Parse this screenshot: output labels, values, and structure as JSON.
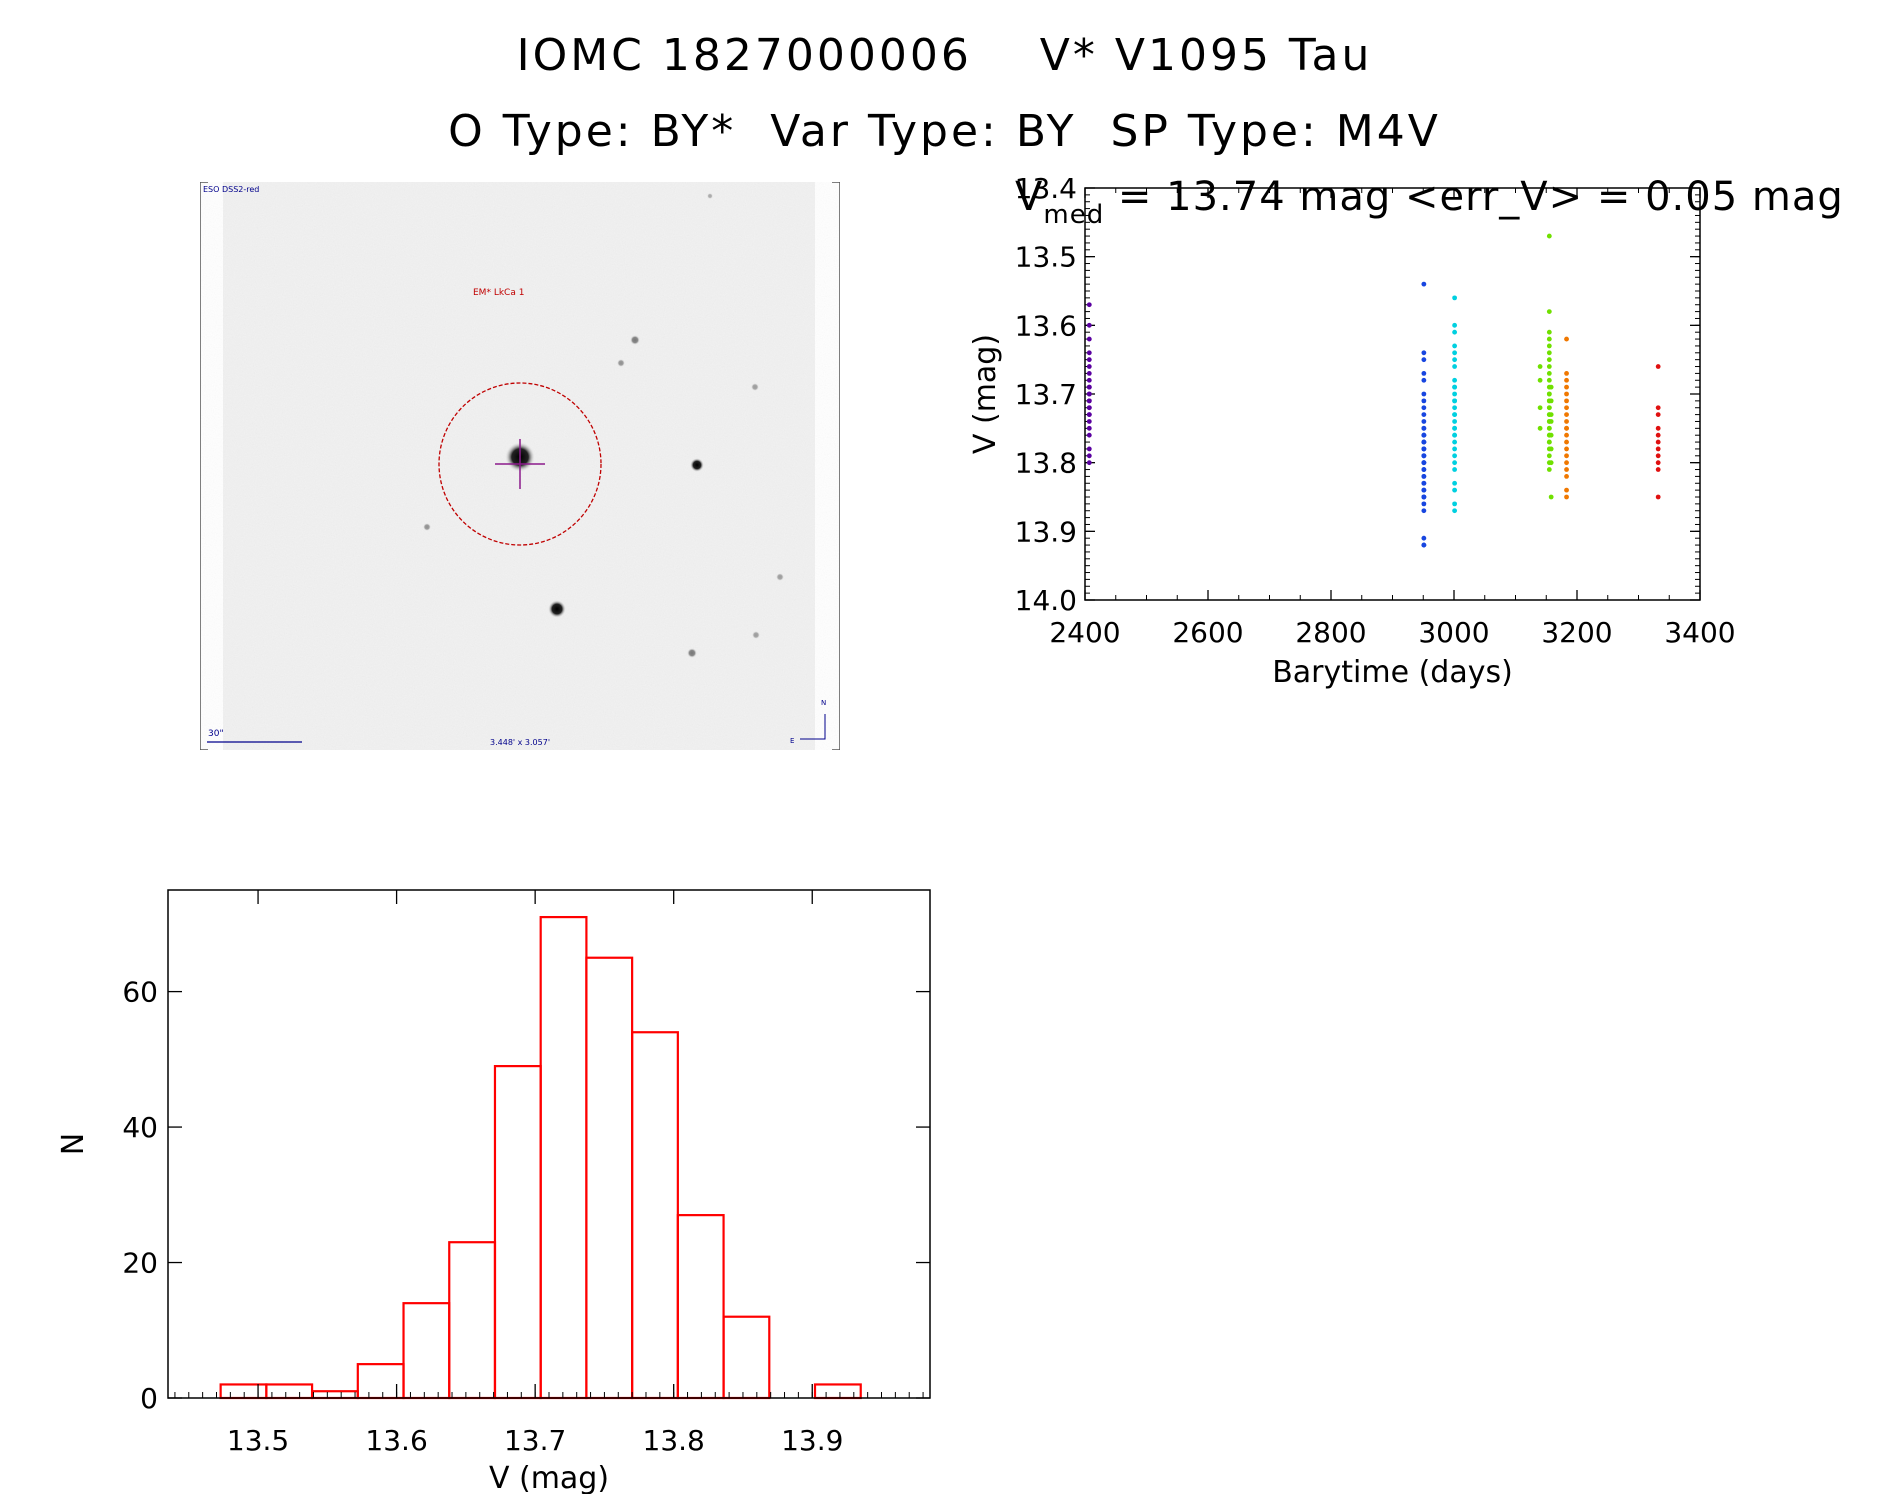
{
  "header": {
    "title_line1": "IOMC 1827000006    V* V1095 Tau",
    "title_line2": "O Type: BY*  Var Type: BY  SP Type: M4V"
  },
  "finder": {
    "survey_label": "ESO DSS2-red",
    "object_label": "EM* LkCa 1",
    "scale_label": "30\"",
    "fov_label": "3.448' x 3.057'",
    "north_label": "N",
    "east_label": "E",
    "colors": {
      "circle": "#c00000",
      "crosshair": "#8b1a8b",
      "labels": "#00008b"
    }
  },
  "chart_data": [
    {
      "type": "scatter",
      "title_prefix": "V",
      "title_subscript": "med",
      "title_rest": " = 13.74 mag <err_V> = 0.05 mag",
      "xlabel": "Barytime (days)",
      "ylabel": "V (mag)",
      "xlim": [
        2400,
        3400
      ],
      "ylim": [
        14.0,
        13.4
      ],
      "y_inverted": true,
      "xticks": [
        2400,
        2600,
        2800,
        3000,
        3200,
        3400
      ],
      "yticks": [
        "13.4",
        "13.5",
        "13.6",
        "13.7",
        "13.8",
        "13.9",
        "14.0"
      ],
      "series": [
        {
          "color": "#5a00a0",
          "x": [
            2407,
            2407,
            2407,
            2407,
            2407,
            2407,
            2407,
            2407,
            2407,
            2407,
            2407,
            2407,
            2407,
            2407,
            2407,
            2407,
            2407,
            2407,
            2407,
            2407,
            2407,
            2407,
            2407,
            2407
          ],
          "y": [
            13.57,
            13.6,
            13.62,
            13.64,
            13.65,
            13.66,
            13.67,
            13.68,
            13.69,
            13.69,
            13.7,
            13.7,
            13.71,
            13.71,
            13.72,
            13.72,
            13.73,
            13.73,
            13.74,
            13.75,
            13.76,
            13.78,
            13.79,
            13.8
          ]
        },
        {
          "color": "#1846e0",
          "x": [
            2951,
            2951,
            2951,
            2951,
            2951,
            2951,
            2951,
            2951,
            2951,
            2951,
            2951,
            2951,
            2951,
            2951,
            2951,
            2951,
            2951,
            2951,
            2951,
            2951,
            2951,
            2951,
            2951,
            2951,
            2951,
            2951,
            2951,
            2951,
            2951,
            2951,
            2951,
            2951,
            2951,
            2951,
            2951,
            2951,
            2951,
            2951,
            2951,
            2951,
            2951,
            2951,
            2951
          ],
          "y": [
            13.54,
            13.64,
            13.65,
            13.67,
            13.68,
            13.7,
            13.71,
            13.72,
            13.73,
            13.74,
            13.75,
            13.75,
            13.76,
            13.76,
            13.76,
            13.77,
            13.77,
            13.77,
            13.78,
            13.78,
            13.78,
            13.79,
            13.79,
            13.79,
            13.8,
            13.8,
            13.8,
            13.81,
            13.81,
            13.82,
            13.82,
            13.83,
            13.83,
            13.84,
            13.84,
            13.85,
            13.85,
            13.85,
            13.86,
            13.87,
            13.91,
            13.92,
            13.92
          ]
        },
        {
          "color": "#00d0e0",
          "x": [
            3001,
            3001,
            3001,
            3001,
            3001,
            3001,
            3001,
            3001,
            3001,
            3001,
            3001,
            3001,
            3001,
            3001,
            3001,
            3001,
            3001,
            3001,
            3001,
            3001,
            3001,
            3001,
            3001,
            3001,
            3001,
            3001,
            3001,
            3001,
            3001,
            3001
          ],
          "y": [
            13.56,
            13.6,
            13.61,
            13.63,
            13.64,
            13.65,
            13.66,
            13.68,
            13.69,
            13.69,
            13.7,
            13.71,
            13.71,
            13.72,
            13.73,
            13.73,
            13.74,
            13.75,
            13.75,
            13.76,
            13.76,
            13.77,
            13.78,
            13.79,
            13.8,
            13.81,
            13.83,
            13.84,
            13.86,
            13.87
          ]
        },
        {
          "color": "#70e000",
          "x": [
            3140,
            3140,
            3140,
            3140,
            3155,
            3155,
            3155,
            3155,
            3155,
            3155,
            3155,
            3155,
            3155,
            3155,
            3155,
            3155,
            3155,
            3155,
            3155,
            3155,
            3155,
            3155,
            3155,
            3155,
            3155,
            3155,
            3155,
            3155,
            3155,
            3155,
            3155,
            3155,
            3155,
            3155,
            3155,
            3158,
            3158,
            3158,
            3158,
            3158,
            3158,
            3158,
            3158
          ],
          "y": [
            13.66,
            13.68,
            13.72,
            13.75,
            13.47,
            13.58,
            13.61,
            13.62,
            13.63,
            13.64,
            13.65,
            13.66,
            13.67,
            13.68,
            13.69,
            13.7,
            13.7,
            13.71,
            13.71,
            13.72,
            13.72,
            13.73,
            13.73,
            13.74,
            13.74,
            13.75,
            13.75,
            13.76,
            13.76,
            13.77,
            13.77,
            13.78,
            13.79,
            13.8,
            13.81,
            13.69,
            13.71,
            13.73,
            13.74,
            13.76,
            13.78,
            13.8,
            13.85
          ]
        },
        {
          "color": "#f07800",
          "x": [
            3183,
            3183,
            3183,
            3183,
            3183,
            3183,
            3183,
            3183,
            3183,
            3183,
            3183,
            3183,
            3183,
            3183,
            3183,
            3183,
            3183,
            3183,
            3183,
            3183
          ],
          "y": [
            13.62,
            13.67,
            13.68,
            13.69,
            13.7,
            13.71,
            13.72,
            13.73,
            13.74,
            13.75,
            13.75,
            13.76,
            13.77,
            13.78,
            13.79,
            13.8,
            13.81,
            13.82,
            13.84,
            13.85
          ]
        },
        {
          "color": "#e01010",
          "x": [
            3332,
            3332,
            3332,
            3332,
            3332,
            3332,
            3332,
            3332,
            3332,
            3332,
            3332
          ],
          "y": [
            13.66,
            13.72,
            13.73,
            13.75,
            13.76,
            13.77,
            13.78,
            13.79,
            13.8,
            13.81,
            13.85
          ]
        }
      ]
    },
    {
      "type": "bar",
      "xlabel": "V (mag)",
      "ylabel": "N",
      "bin_width": 0.033,
      "bin_starts": [
        13.473,
        13.506,
        13.539,
        13.572,
        13.605,
        13.638,
        13.671,
        13.704,
        13.737,
        13.77,
        13.803,
        13.836,
        13.869,
        13.902
      ],
      "values": [
        2,
        2,
        1,
        5,
        14,
        23,
        49,
        71,
        65,
        54,
        27,
        12,
        0,
        2
      ],
      "xlim": [
        13.435,
        13.985
      ],
      "ylim": [
        0,
        75
      ],
      "xticks": [
        "13.5",
        "13.6",
        "13.7",
        "13.8",
        "13.9"
      ],
      "yticks": [
        "0",
        "20",
        "40",
        "60"
      ],
      "bar_color": "#ff0000"
    }
  ]
}
